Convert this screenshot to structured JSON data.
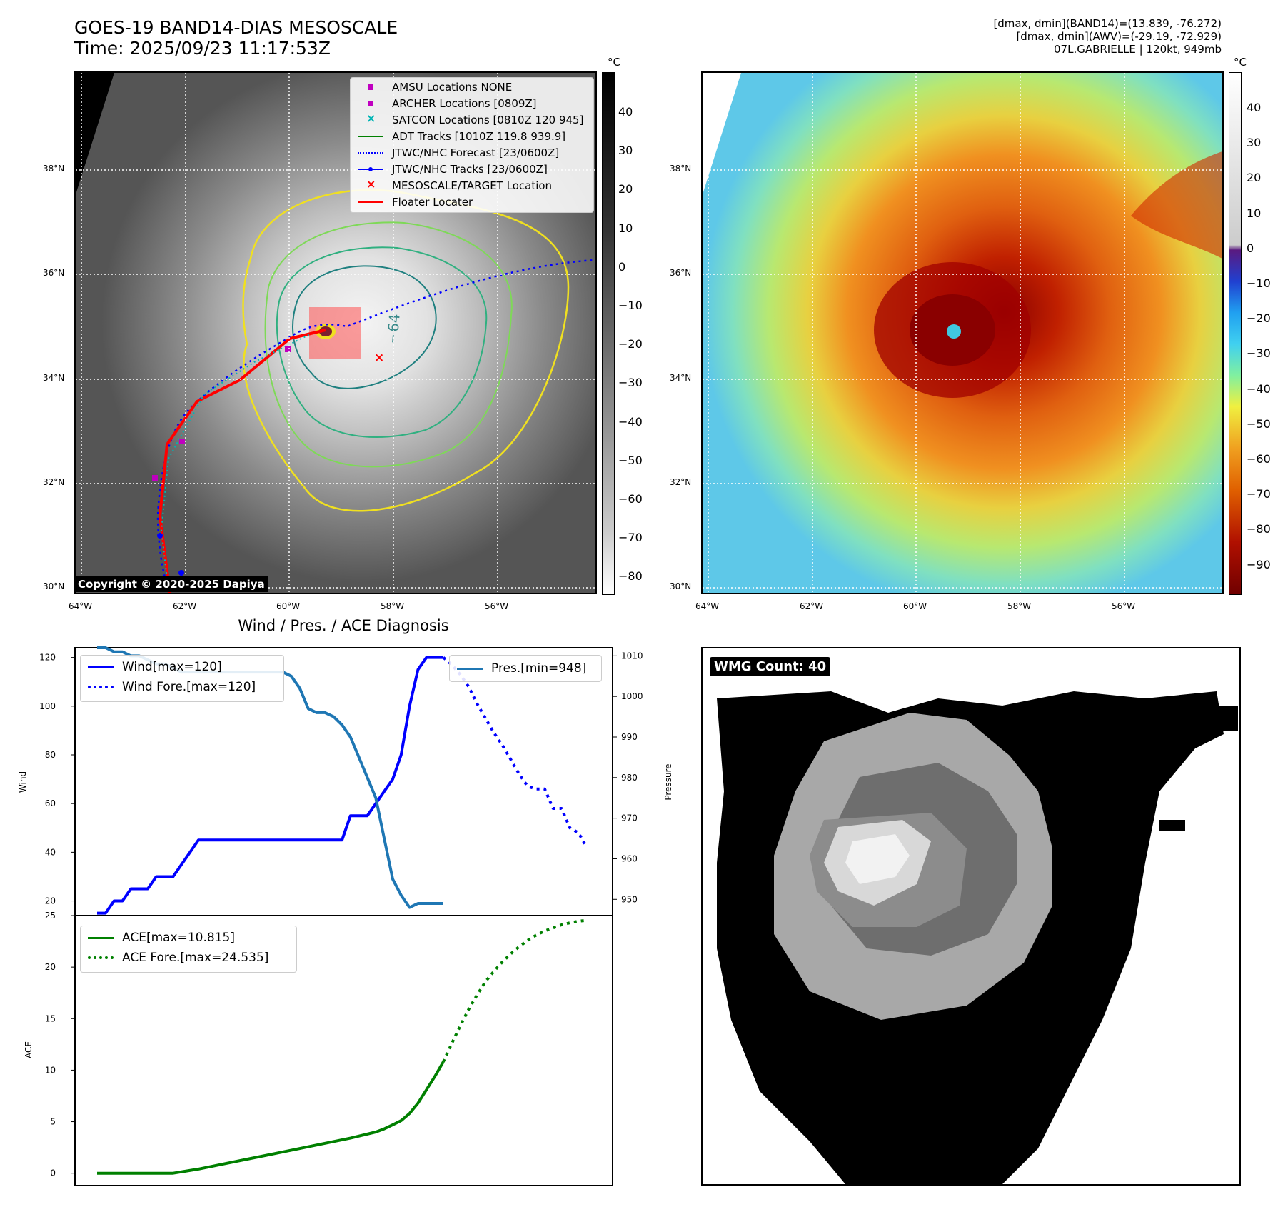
{
  "header": {
    "title_line1": "GOES-19 BAND14-DIAS MESOSCALE",
    "title_line2": "Time: 2025/09/23 11:17:53Z",
    "info_line1": "[dmax, dmin](BAND14)=(13.839, -76.272)",
    "info_line2": "[dmax, dmin](AWV)=(-29.19, -72.929)",
    "info_line3": "07L.GABRIELLE | 120kt, 949mb"
  },
  "maps": {
    "lat_labels": [
      "38°N",
      "36°N",
      "34°N",
      "32°N",
      "30°N"
    ],
    "lon_labels": [
      "64°W",
      "62°W",
      "60°W",
      "58°W",
      "56°W"
    ],
    "copyright": "Copyright © 2020-2025 Dapiya",
    "unit": "°C",
    "ir_colorbar_ticks": [
      "40",
      "30",
      "20",
      "10",
      "0",
      "−10",
      "−20",
      "−30",
      "−40",
      "−50",
      "−60",
      "−70",
      "−80"
    ],
    "color_colorbar_ticks": [
      "40",
      "30",
      "20",
      "10",
      "0",
      "−10",
      "−20",
      "−30",
      "−40",
      "−50",
      "−60",
      "−70",
      "−80",
      "−90"
    ],
    "legend": [
      {
        "label": "AMSU Locations NONE",
        "color": "#c000c0",
        "symbol": "square"
      },
      {
        "label": "ARCHER Locations [0809Z]",
        "color": "#c000c0",
        "symbol": "square"
      },
      {
        "label": "SATCON Locations [0810Z 120 945]",
        "color": "#00b5b5",
        "symbol": "x"
      },
      {
        "label": "ADT Tracks [1010Z 119.8 939.9]",
        "color": "#008000",
        "symbol": "line"
      },
      {
        "label": "JTWC/NHC Forecast [23/0600Z]",
        "color": "#0000ff",
        "symbol": "dotted"
      },
      {
        "label": "JTWC/NHC Tracks [23/0600Z]",
        "color": "#0000ff",
        "symbol": "line-dot"
      },
      {
        "label": "MESOSCALE/TARGET Location",
        "color": "#ff0000",
        "symbol": "x"
      },
      {
        "label": "Floater Locater",
        "color": "#ff0000",
        "symbol": "line"
      }
    ]
  },
  "diagnosis": {
    "title": "Wind / Pres. / ACE Diagnosis",
    "wind_ylabel": "Wind",
    "pressure_ylabel": "Pressure",
    "ace_ylabel": "ACE",
    "legend_wind": "Wind[max=120]",
    "legend_wind_fore": "Wind Fore.[max=120]",
    "legend_pres": "Pres.[min=948]",
    "legend_ace": "ACE[max=10.815]",
    "legend_ace_fore": "ACE Fore.[max=24.535]"
  },
  "wmg": {
    "label": "WMG Count: 40"
  },
  "chart_data": [
    {
      "type": "line",
      "title": "Wind / Pres. / ACE Diagnosis",
      "ylabel": "Wind",
      "ylim": [
        14,
        124
      ],
      "yticks": [
        20,
        40,
        60,
        80,
        100,
        120
      ],
      "series": [
        {
          "name": "Wind[max=120]",
          "color": "#0000ff",
          "style": "solid",
          "x": [
            0,
            1,
            2,
            3,
            4,
            5,
            6,
            7,
            8,
            9,
            10,
            11,
            12,
            13,
            14,
            15,
            16,
            17,
            18,
            19,
            20,
            21,
            22,
            23,
            24,
            25,
            26,
            27,
            28,
            29,
            30,
            31,
            32,
            33,
            34,
            35,
            36,
            37,
            38,
            39,
            40,
            41
          ],
          "y": [
            15,
            15,
            20,
            20,
            25,
            25,
            25,
            30,
            30,
            30,
            35,
            40,
            45,
            45,
            45,
            45,
            45,
            45,
            45,
            45,
            45,
            45,
            45,
            45,
            45,
            45,
            45,
            45,
            45,
            45,
            55,
            55,
            55,
            60,
            65,
            70,
            80,
            100,
            115,
            120,
            120,
            120
          ]
        },
        {
          "name": "Wind Fore.[max=120]",
          "color": "#0000ff",
          "style": "dotted",
          "x": [
            41,
            42,
            43,
            44,
            45,
            46,
            47,
            48,
            49,
            50,
            51,
            52,
            53,
            54,
            55,
            56,
            57,
            58
          ],
          "y": [
            120,
            117,
            113,
            108,
            101,
            95,
            89,
            84,
            78,
            72,
            67,
            66,
            66,
            58,
            58,
            50,
            48,
            42
          ]
        }
      ]
    },
    {
      "type": "line",
      "ylabel": "Pressure",
      "ylim": [
        946,
        1012
      ],
      "yticks": [
        950,
        960,
        970,
        980,
        990,
        1000,
        1010
      ],
      "series": [
        {
          "name": "Pres.[min=948]",
          "color": "#1f77b4",
          "style": "solid",
          "x": [
            0,
            1,
            2,
            3,
            4,
            5,
            6,
            7,
            8,
            9,
            10,
            11,
            12,
            13,
            14,
            15,
            16,
            17,
            18,
            19,
            20,
            21,
            22,
            23,
            24,
            25,
            26,
            27,
            28,
            29,
            30,
            31,
            32,
            33,
            34,
            35,
            36,
            37,
            38,
            39,
            40,
            41
          ],
          "y": [
            1012,
            1012,
            1011,
            1011,
            1010,
            1010,
            1009,
            1008,
            1008,
            1007,
            1006,
            1006,
            1006,
            1006,
            1006,
            1006,
            1006,
            1006,
            1006,
            1006,
            1006,
            1006,
            1006,
            1005,
            1002,
            997,
            996,
            996,
            995,
            993,
            990,
            985,
            980,
            975,
            965,
            955,
            951,
            948,
            949,
            949,
            949,
            949
          ]
        }
      ]
    },
    {
      "type": "line",
      "ylabel": "ACE",
      "ylim": [
        -1.2,
        25
      ],
      "yticks": [
        0,
        5,
        10,
        15,
        20,
        25
      ],
      "series": [
        {
          "name": "ACE[max=10.815]",
          "color": "#008000",
          "style": "solid",
          "x": [
            0,
            3,
            6,
            9,
            12,
            15,
            18,
            21,
            24,
            27,
            30,
            33,
            34,
            35,
            36,
            37,
            38,
            39,
            40,
            41
          ],
          "y": [
            0,
            0,
            0,
            0,
            0.4,
            0.9,
            1.4,
            1.9,
            2.4,
            2.9,
            3.4,
            4.0,
            4.3,
            4.7,
            5.1,
            5.8,
            6.8,
            8.1,
            9.4,
            10.815
          ]
        },
        {
          "name": "ACE Fore.[max=24.535]",
          "color": "#008000",
          "style": "dotted",
          "x": [
            41,
            42,
            43,
            44,
            45,
            46,
            47,
            48,
            49,
            50,
            51,
            52,
            53,
            54,
            55,
            56,
            57,
            58
          ],
          "y": [
            10.815,
            12.6,
            14.3,
            15.9,
            17.3,
            18.6,
            19.6,
            20.5,
            21.3,
            22.0,
            22.6,
            23.1,
            23.5,
            23.8,
            24.1,
            24.3,
            24.45,
            24.535
          ]
        }
      ]
    }
  ]
}
